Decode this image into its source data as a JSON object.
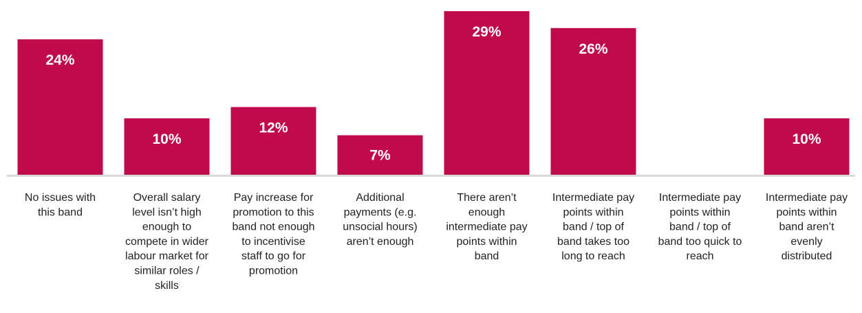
{
  "colors": {
    "bar": "#C00A4B",
    "axis": "#D9D9D9",
    "label": "#222222",
    "value_text": "#FFFFFF"
  },
  "chart_data": {
    "type": "bar",
    "title": "",
    "xlabel": "",
    "ylabel": "",
    "ylim": [
      0,
      30
    ],
    "grid": false,
    "legend": "none",
    "categories": [
      "No issues with this band",
      "Overall salary level isn’t high enough to compete in wider labour market for similar roles / skills",
      "Pay increase for promotion to this band not enough to incentivise staff to go for promotion",
      "Additional payments (e.g. unsocial hours) aren’t enough",
      "There aren’t enough intermediate pay points within band",
      "Intermediate pay points within band / top of band takes too long to reach",
      "Intermediate pay points within band / top of band too quick to reach",
      "Intermediate pay points within band aren’t evenly distributed"
    ],
    "category_lines": [
      [
        "No issues with",
        "this band"
      ],
      [
        "Overall salary",
        "level isn’t high",
        "enough to",
        "compete in wider",
        "labour market for",
        "similar roles /",
        "skills"
      ],
      [
        "Pay increase for",
        "promotion to this",
        "band not enough",
        "to incentivise",
        "staff to go for",
        "promotion"
      ],
      [
        "Additional",
        "payments (e.g.",
        "unsocial hours)",
        "aren’t enough"
      ],
      [
        "There aren’t",
        "enough",
        "intermediate pay",
        "points within",
        "band"
      ],
      [
        "Intermediate pay",
        "points within",
        "band / top of",
        "band takes too",
        "long to reach"
      ],
      [
        "Intermediate pay",
        "points within",
        "band / top of",
        "band too quick to",
        "reach"
      ],
      [
        "Intermediate pay",
        "points within",
        "band aren’t",
        "evenly",
        "distributed"
      ]
    ],
    "values": [
      24,
      10,
      12,
      7,
      29,
      26,
      0,
      10
    ],
    "value_labels": [
      "24%",
      "10%",
      "12%",
      "7%",
      "29%",
      "26%",
      "",
      "10%"
    ]
  }
}
